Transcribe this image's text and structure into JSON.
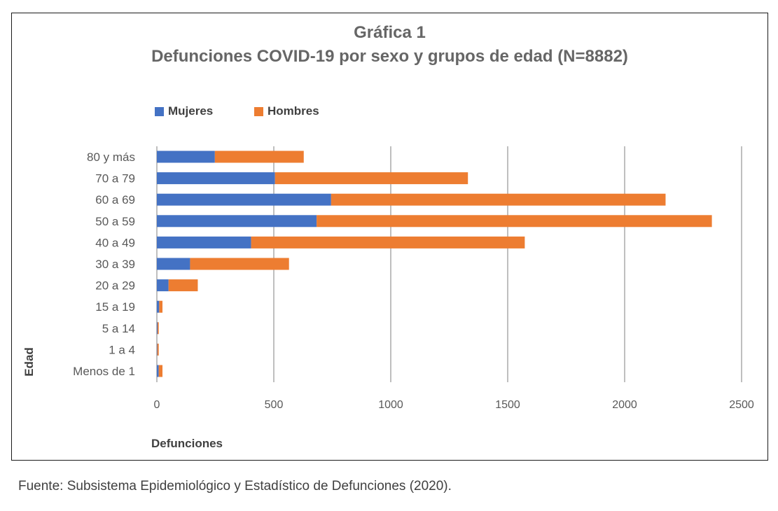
{
  "figure": {
    "title": "Gráfica 1",
    "subtitle": "Defunciones COVID-19 por sexo y grupos de edad (N=8882)",
    "source": "Fuente: Subsistema Epidemiológico y Estadístico de Defunciones (2020)."
  },
  "chart_data": {
    "type": "bar",
    "orientation": "horizontal",
    "stacked": true,
    "title": "Gráfica 1",
    "subtitle": "Defunciones COVID-19 por sexo y grupos de edad (N=8882)",
    "xlabel": "Defunciones",
    "ylabel": "Edad",
    "xlim": [
      0,
      2500
    ],
    "xticks": [
      0,
      500,
      1000,
      1500,
      2000,
      2500
    ],
    "grid": "vertical",
    "legend_position": "top",
    "categories": [
      "80 y más",
      "70 a 79",
      "60 a 69",
      "50 a 59",
      "40 a 49",
      "30 a 39",
      "20 a 29",
      "15 a 19",
      "5 a 14",
      "1 a 4",
      "Menos de 1"
    ],
    "series": [
      {
        "name": "Mujeres",
        "color": "#4472C4",
        "values": [
          248,
          505,
          745,
          683,
          403,
          142,
          50,
          10,
          3,
          2,
          8
        ]
      },
      {
        "name": "Hombres",
        "color": "#ED7D31",
        "values": [
          380,
          825,
          1430,
          1690,
          1170,
          423,
          125,
          14,
          5,
          6,
          16
        ]
      }
    ]
  }
}
